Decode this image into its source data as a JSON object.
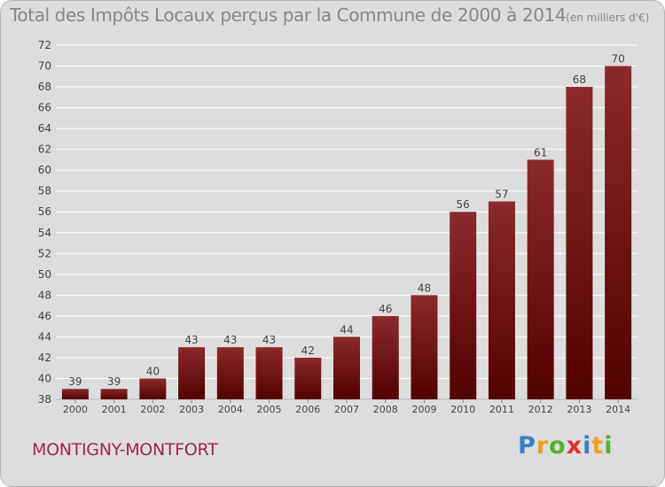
{
  "chart_data": {
    "type": "bar",
    "title": "Total des Impôts Locaux perçus par la Commune de 2000 à 2014",
    "unit_note": "(en milliers d'€)",
    "xlabel": "",
    "ylabel": "",
    "categories": [
      "2000",
      "2001",
      "2002",
      "2003",
      "2004",
      "2005",
      "2006",
      "2007",
      "2008",
      "2009",
      "2010",
      "2011",
      "2012",
      "2013",
      "2014"
    ],
    "values": [
      39,
      39,
      40,
      43,
      43,
      43,
      42,
      44,
      46,
      48,
      56,
      57,
      61,
      68,
      70
    ],
    "ylim": [
      38,
      72
    ],
    "yticks": [
      38,
      40,
      42,
      44,
      46,
      48,
      50,
      52,
      54,
      56,
      58,
      60,
      62,
      64,
      66,
      68,
      70,
      72
    ],
    "grid": true,
    "legend": "none"
  },
  "commune_name": "MONTIGNY-MONTFORT",
  "logo": {
    "letters": [
      "P",
      "r",
      "o",
      "x",
      "i",
      "t",
      "i"
    ],
    "colors": [
      "#3a7fc4",
      "#f0a020",
      "#58b030",
      "#e03030",
      "#3a7fc4",
      "#f0a020",
      "#58b030"
    ]
  },
  "colors": {
    "bar_top": "#8c2a2a",
    "bar_bottom": "#520000",
    "grid": "#ffffff",
    "text": "#444444",
    "title": "#888888",
    "commune": "#9e2650"
  }
}
